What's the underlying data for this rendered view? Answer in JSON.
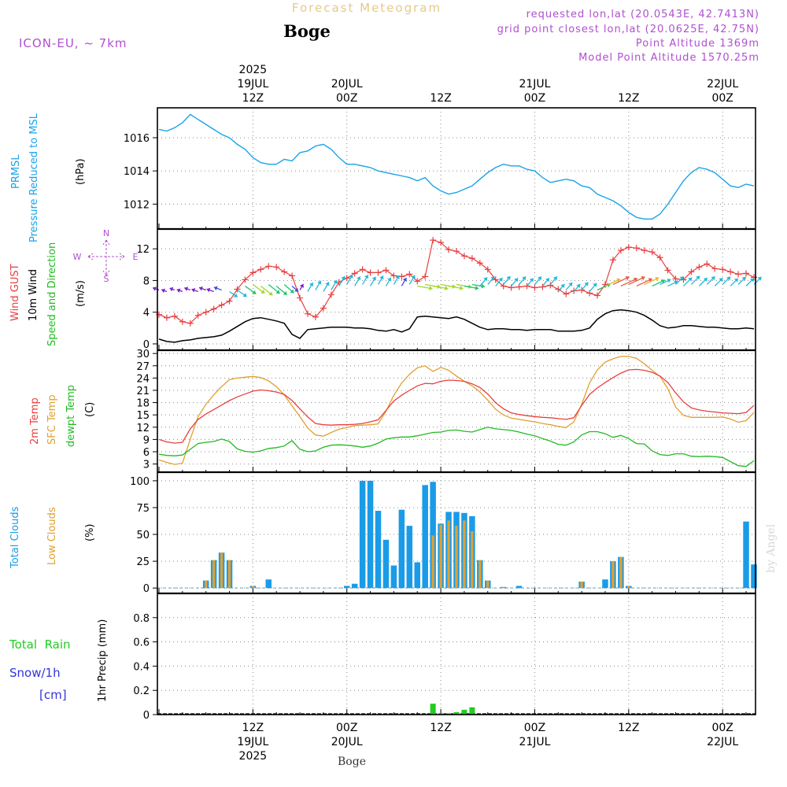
{
  "header": {
    "faded_title": "Forecast Meteogram",
    "location": "Boge",
    "model": "ICON-EU, ~ 7km",
    "requested": "requested lon,lat (20.0543E, 42.7413N)",
    "gridpoint": "grid point closest lon,lat (20.0625E, 42.75N)",
    "point_alt": "Point Altitude 1369m",
    "model_alt": "Model Point Altitude 1570.25m"
  },
  "footer": {
    "location": "Boge",
    "credit": "by Angel"
  },
  "colors": {
    "pressure": "#1aa3e8",
    "gust": "#e84040",
    "wind": "#000000",
    "temp2m": "#e84040",
    "sfc": "#e0a030",
    "dewpt": "#22bb22",
    "totalcloud": "#1a9be8",
    "lowcloud": "#e0a030",
    "rain": "#22cc22",
    "snow": "#3333dd"
  },
  "chart_data": [
    {
      "type": "time-axis",
      "top_labels": [
        {
          "hour": 12,
          "lines": [
            "2025",
            "19JUL",
            "12Z"
          ]
        },
        {
          "hour": 24,
          "lines": [
            "20JUL",
            "00Z"
          ]
        },
        {
          "hour": 36,
          "lines": [
            "12Z"
          ]
        },
        {
          "hour": 48,
          "lines": [
            "21JUL",
            "00Z"
          ]
        },
        {
          "hour": 60,
          "lines": [
            "12Z"
          ]
        },
        {
          "hour": 72,
          "lines": [
            "22JUL",
            "00Z"
          ]
        }
      ],
      "bottom_labels": [
        {
          "hour": 12,
          "lines": [
            "12Z",
            "19JUL",
            "2025"
          ]
        },
        {
          "hour": 24,
          "lines": [
            "00Z",
            "20JUL"
          ]
        },
        {
          "hour": 36,
          "lines": [
            "12Z"
          ]
        },
        {
          "hour": 48,
          "lines": [
            "00Z",
            "21JUL"
          ]
        },
        {
          "hour": 60,
          "lines": [
            "12Z"
          ]
        },
        {
          "hour": 72,
          "lines": [
            "00Z",
            "22JUL"
          ]
        }
      ],
      "hour_range": [
        0,
        76
      ]
    },
    {
      "type": "line",
      "panel": "pressure",
      "ylabels": [
        "PRMSL",
        "Pressure Reduced to MSL",
        "(hPa)"
      ],
      "ylim": [
        1010.5,
        1017.8
      ],
      "yticks": [
        1012,
        1014,
        1016
      ],
      "x": [
        0,
        1,
        2,
        3,
        4,
        5,
        6,
        7,
        8,
        9,
        10,
        11,
        12,
        13,
        14,
        15,
        16,
        17,
        18,
        19,
        20,
        21,
        22,
        23,
        24,
        25,
        26,
        27,
        28,
        29,
        30,
        31,
        32,
        33,
        34,
        35,
        36,
        37,
        38,
        39,
        40,
        41,
        42,
        43,
        44,
        45,
        46,
        47,
        48,
        49,
        50,
        51,
        52,
        53,
        54,
        55,
        56,
        57,
        58,
        59,
        60,
        61,
        62,
        63,
        64,
        65,
        66,
        67,
        68,
        69,
        70,
        71,
        72,
        73,
        74,
        75,
        76
      ],
      "series": [
        {
          "values": [
            1016.5,
            1016.4,
            1016.6,
            1016.9,
            1017.4,
            1017.1,
            1016.8,
            1016.5,
            1016.2,
            1016.0,
            1015.6,
            1015.3,
            1014.8,
            1014.5,
            1014.4,
            1014.4,
            1014.7,
            1014.6,
            1015.1,
            1015.2,
            1015.5,
            1015.6,
            1015.3,
            1014.8,
            1014.4,
            1014.4,
            1014.3,
            1014.2,
            1014.0,
            1013.9,
            1013.8,
            1013.7,
            1013.6,
            1013.4,
            1013.6,
            1013.1,
            1012.8,
            1012.6,
            1012.7,
            1012.9,
            1013.1,
            1013.5,
            1013.9,
            1014.2,
            1014.4,
            1014.3,
            1014.3,
            1014.1,
            1014.0,
            1013.6,
            1013.3,
            1013.4,
            1013.5,
            1013.4,
            1013.1,
            1013.0,
            1012.6,
            1012.4,
            1012.2,
            1011.9,
            1011.5,
            1011.2,
            1011.1,
            1011.1,
            1011.4,
            1012.0,
            1012.7,
            1013.4,
            1013.9,
            1014.2,
            1014.1,
            1013.9,
            1013.5,
            1013.1,
            1013.0,
            1013.2,
            1013.1
          ]
        }
      ]
    },
    {
      "type": "line",
      "panel": "wind",
      "ylabels": [
        "Wind GUST",
        "10m Wind",
        "Speed and Direction",
        "(m/s)"
      ],
      "compass": {
        "n": "N",
        "s": "S",
        "e": "E",
        "w": "W"
      },
      "ylim": [
        -0.8,
        14.5
      ],
      "yticks": [
        0,
        4,
        8,
        12
      ],
      "series": [
        {
          "name": "Wind GUST",
          "values": [
            3.7,
            3.3,
            3.5,
            2.8,
            2.6,
            3.6,
            4.0,
            4.4,
            4.9,
            5.4,
            6.9,
            8.1,
            9.0,
            9.4,
            9.8,
            9.7,
            9.1,
            8.6,
            5.8,
            3.8,
            3.4,
            4.5,
            6.2,
            7.8,
            8.3,
            8.9,
            9.4,
            9.0,
            9.0,
            9.3,
            8.6,
            8.5,
            8.8,
            7.9,
            8.5,
            13.1,
            12.8,
            11.9,
            11.7,
            11.1,
            10.8,
            10.2,
            9.4,
            8.1,
            7.3,
            7.1,
            7.2,
            7.3,
            7.1,
            7.2,
            7.4,
            6.9,
            6.3,
            6.7,
            6.8,
            6.4,
            6.1,
            7.5,
            10.6,
            11.8,
            12.2,
            12.1,
            11.8,
            11.6,
            10.9,
            9.3,
            8.2,
            8.1,
            9.1,
            9.7,
            10.1,
            9.5,
            9.4,
            9.1,
            8.8,
            8.9,
            8.4
          ]
        },
        {
          "name": "10m Wind",
          "values": [
            0.6,
            0.3,
            0.2,
            0.4,
            0.5,
            0.7,
            0.8,
            0.9,
            1.1,
            1.6,
            2.2,
            2.8,
            3.2,
            3.3,
            3.1,
            2.9,
            2.6,
            1.2,
            0.7,
            1.8,
            1.9,
            2.0,
            2.1,
            2.1,
            2.1,
            2.0,
            2.0,
            1.9,
            1.7,
            1.6,
            1.8,
            1.5,
            1.9,
            3.4,
            3.5,
            3.4,
            3.3,
            3.2,
            3.4,
            3.1,
            2.6,
            2.1,
            1.8,
            1.9,
            1.9,
            1.8,
            1.8,
            1.7,
            1.8,
            1.8,
            1.8,
            1.6,
            1.6,
            1.6,
            1.7,
            2.0,
            3.1,
            3.8,
            4.2,
            4.3,
            4.2,
            4.0,
            3.6,
            3.0,
            2.3,
            2.0,
            2.1,
            2.3,
            2.3,
            2.2,
            2.1,
            2.1,
            2.0,
            1.9,
            1.9,
            2.0,
            1.9
          ]
        }
      ]
    },
    {
      "type": "line",
      "panel": "temperature",
      "ylabels": [
        "2m Temp",
        "SFC Temp",
        "dewpt Temp",
        "(C)"
      ],
      "ylim": [
        1.0,
        30.8
      ],
      "yticks": [
        3,
        6,
        9,
        12,
        15,
        18,
        21,
        24,
        27,
        30
      ],
      "series": [
        {
          "name": "2m Temp",
          "values": [
            9.0,
            8.4,
            8.1,
            8.3,
            11.6,
            13.9,
            15.2,
            16.3,
            17.4,
            18.5,
            19.4,
            20.1,
            20.8,
            21.1,
            20.9,
            20.6,
            20.0,
            18.5,
            16.5,
            14.5,
            12.9,
            12.6,
            12.5,
            12.6,
            12.6,
            12.7,
            12.9,
            13.3,
            13.8,
            16.1,
            18.4,
            19.8,
            21.0,
            22.1,
            22.7,
            22.6,
            23.2,
            23.5,
            23.4,
            23.2,
            22.6,
            21.7,
            20.1,
            18.0,
            16.5,
            15.5,
            15.1,
            14.8,
            14.6,
            14.4,
            14.3,
            14.1,
            13.9,
            14.3,
            17.3,
            20.0,
            21.6,
            22.9,
            24.1,
            25.2,
            26.0,
            26.1,
            25.9,
            25.4,
            24.5,
            22.9,
            20.4,
            18.2,
            16.7,
            16.2,
            15.9,
            15.7,
            15.5,
            15.4,
            15.3,
            15.6,
            17.3
          ]
        },
        {
          "name": "SFC Temp",
          "values": [
            4.0,
            3.4,
            2.9,
            3.2,
            9.1,
            14.6,
            17.6,
            19.9,
            21.9,
            23.6,
            24.0,
            24.2,
            24.4,
            24.1,
            23.3,
            21.9,
            19.9,
            17.2,
            14.6,
            11.8,
            10.1,
            9.8,
            10.7,
            11.5,
            11.9,
            12.4,
            12.5,
            12.6,
            12.8,
            15.9,
            19.8,
            22.8,
            24.9,
            26.5,
            27.0,
            25.6,
            26.6,
            25.9,
            24.5,
            23.2,
            22.1,
            20.6,
            18.6,
            16.4,
            15.0,
            14.2,
            13.9,
            13.6,
            13.3,
            12.9,
            12.6,
            12.2,
            11.9,
            13.3,
            17.6,
            22.8,
            26.0,
            27.9,
            28.7,
            29.3,
            29.3,
            28.8,
            27.5,
            25.9,
            24.4,
            21.4,
            16.9,
            14.9,
            14.4,
            14.4,
            14.4,
            14.4,
            14.5,
            14.0,
            13.2,
            13.6,
            15.6
          ]
        },
        {
          "name": "dewpt Temp",
          "values": [
            5.4,
            5.1,
            5.0,
            5.2,
            6.6,
            8.0,
            8.3,
            8.5,
            9.1,
            8.5,
            6.7,
            6.1,
            5.9,
            6.2,
            6.8,
            7.0,
            7.4,
            8.7,
            6.6,
            6.0,
            6.2,
            7.1,
            7.6,
            7.7,
            7.6,
            7.4,
            7.1,
            7.4,
            8.1,
            9.1,
            9.4,
            9.6,
            9.6,
            9.9,
            10.3,
            10.7,
            10.8,
            11.2,
            11.3,
            11.0,
            10.8,
            11.4,
            12.0,
            11.6,
            11.4,
            11.2,
            10.8,
            10.3,
            9.9,
            9.2,
            8.6,
            7.8,
            7.6,
            8.4,
            10.1,
            10.9,
            10.9,
            10.4,
            9.5,
            10.0,
            9.2,
            8.0,
            7.9,
            6.2,
            5.3,
            5.1,
            5.5,
            5.5,
            4.9,
            4.8,
            4.9,
            4.8,
            4.6,
            3.6,
            2.6,
            2.4,
            3.8
          ]
        }
      ]
    },
    {
      "type": "bar",
      "panel": "clouds",
      "ylabels": [
        "Total Clouds",
        "Low Clouds",
        "(%)"
      ],
      "ylim": [
        -5,
        108
      ],
      "yticks": [
        0,
        25,
        50,
        75,
        100
      ],
      "series": [
        {
          "name": "Total Clouds",
          "values": [
            0,
            0,
            0,
            0,
            0,
            0,
            7,
            26,
            33,
            26,
            0,
            0,
            2,
            0,
            8,
            0,
            0,
            0,
            0,
            0,
            0,
            0,
            0,
            0,
            2,
            4,
            100,
            100,
            72,
            45,
            21,
            73,
            58,
            24,
            96,
            99,
            60,
            71,
            71,
            70,
            67,
            26,
            7,
            0,
            1,
            0,
            2,
            0,
            0,
            0,
            0,
            0,
            0,
            0,
            6,
            0,
            0,
            8,
            25,
            29,
            2,
            0,
            0,
            0,
            0,
            0,
            0,
            0,
            0,
            0,
            0,
            0,
            0,
            0,
            0,
            62,
            22
          ]
        },
        {
          "name": "Low Clouds",
          "values": [
            0,
            0,
            0,
            0,
            0,
            0,
            7,
            26,
            33,
            26,
            0,
            0,
            2,
            0,
            0,
            0,
            0,
            0,
            0,
            0,
            0,
            0,
            0,
            0,
            0,
            0,
            0,
            0,
            0,
            0,
            0,
            0,
            0,
            0,
            0,
            49,
            59,
            63,
            58,
            63,
            53,
            26,
            7,
            0,
            1,
            0,
            0,
            0,
            0,
            0,
            0,
            0,
            0,
            0,
            6,
            0,
            0,
            0,
            25,
            29,
            2,
            0,
            0,
            0,
            0,
            0,
            0,
            0,
            0,
            0,
            0,
            0,
            0,
            0,
            0,
            0,
            0
          ]
        }
      ]
    },
    {
      "type": "bar",
      "panel": "precip",
      "ylabels": [
        "1hr Precip (mm)"
      ],
      "legend": {
        "rain": "Total  Rain",
        "snow": "Snow/1h",
        "snow_unit": "[cm]"
      },
      "ylim": [
        0,
        1.0
      ],
      "yticks": [
        "0",
        "0.2",
        "0.4",
        "0.6",
        "0.8"
      ],
      "series": [
        {
          "name": "Total Rain",
          "values": [
            0,
            0,
            0,
            0,
            0,
            0,
            0,
            0,
            0,
            0,
            0,
            0,
            0,
            0,
            0,
            0,
            0,
            0,
            0,
            0,
            0,
            0,
            0,
            0,
            0,
            0,
            0,
            0,
            0,
            0,
            0,
            0,
            0,
            0,
            0,
            0.09,
            0.01,
            0.01,
            0.02,
            0.04,
            0.06,
            0,
            0,
            0,
            0,
            0,
            0,
            0,
            0,
            0,
            0,
            0,
            0,
            0,
            0,
            0,
            0,
            0,
            0,
            0,
            0,
            0,
            0,
            0,
            0,
            0,
            0,
            0,
            0,
            0,
            0,
            0,
            0,
            0,
            0,
            0,
            0
          ]
        }
      ]
    }
  ]
}
